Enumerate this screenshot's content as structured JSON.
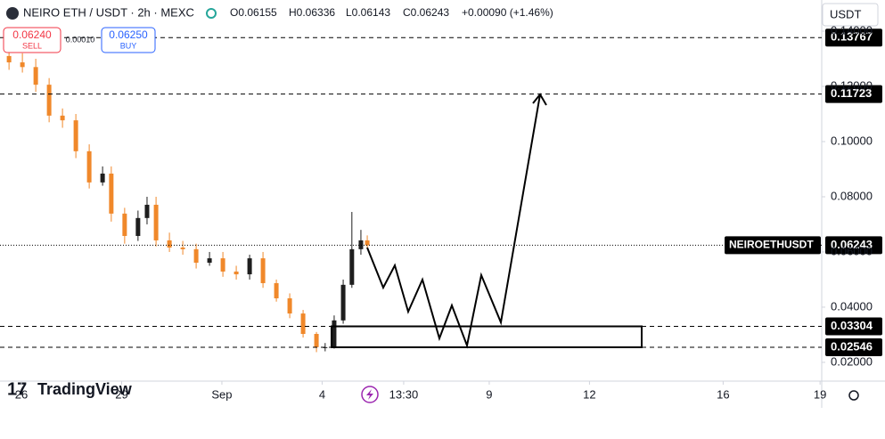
{
  "header": {
    "symbol": "NEIRO ETH / USDT · 2h · MEXC",
    "open": "O0.06155",
    "high": "H0.06336",
    "low": "L0.06143",
    "close": "C0.06243",
    "change": "+0.00090 (+1.46%)",
    "sell_price": "0.06240",
    "sell": "SELL",
    "spread": "0.00010",
    "buy_price": "0.06250",
    "buy": "BUY",
    "currency": "USDT",
    "brand": "TradingView"
  },
  "chart_data": {
    "type": "candlestick",
    "x": [
      -0.37,
      0.03,
      0.43,
      0.83,
      1.23,
      1.63,
      2.03,
      2.43,
      2.69,
      3.09,
      3.49,
      3.76,
      4.03,
      4.43,
      4.83,
      5.23,
      5.63,
      6.03,
      6.43,
      6.83,
      7.23,
      7.63,
      8.03,
      8.43,
      8.83,
      9.09,
      9.36,
      9.63,
      9.89,
      10.16,
      10.35
    ],
    "open": [
      0.131,
      0.1287,
      0.127,
      0.1206,
      0.1094,
      0.1077,
      0.0965,
      0.0852,
      0.0884,
      0.0739,
      0.0658,
      0.0723,
      0.0771,
      0.0642,
      0.0616,
      0.061,
      0.0561,
      0.0577,
      0.0529,
      0.0519,
      0.0577,
      0.0487,
      0.0432,
      0.0377,
      0.0303,
      0.0255,
      0.0255,
      0.0352,
      0.0481,
      0.061,
      0.0642
    ],
    "high": [
      0.134,
      0.132,
      0.13,
      0.123,
      0.112,
      0.11,
      0.099,
      0.091,
      0.091,
      0.076,
      0.075,
      0.08,
      0.08,
      0.067,
      0.064,
      0.063,
      0.06,
      0.06,
      0.055,
      0.059,
      0.06,
      0.05,
      0.045,
      0.039,
      0.031,
      0.027,
      0.037,
      0.05,
      0.0745,
      0.068,
      0.066
    ],
    "low": [
      0.126,
      0.125,
      0.118,
      0.107,
      0.105,
      0.094,
      0.083,
      0.084,
      0.071,
      0.063,
      0.064,
      0.07,
      0.062,
      0.06,
      0.059,
      0.054,
      0.055,
      0.051,
      0.05,
      0.05,
      0.047,
      0.042,
      0.036,
      0.029,
      0.0237,
      0.024,
      0.025,
      0.034,
      0.047,
      0.059,
      0.061
    ],
    "close": [
      0.1287,
      0.127,
      0.1206,
      0.1094,
      0.1077,
      0.0965,
      0.0852,
      0.0884,
      0.0739,
      0.0658,
      0.0723,
      0.0771,
      0.0642,
      0.0616,
      0.061,
      0.0561,
      0.0577,
      0.0529,
      0.0519,
      0.0577,
      0.0487,
      0.0432,
      0.0377,
      0.0303,
      0.0255,
      0.0255,
      0.0352,
      0.0481,
      0.061,
      0.0642,
      0.0624
    ],
    "up_color": "#1e1e1e",
    "down_color": "#f0882a",
    "xlim": [
      -0.64,
      23.95
    ],
    "ylim": [
      0.0132,
      0.1513
    ],
    "xticks": [
      {
        "value": 0,
        "label": "26"
      },
      {
        "value": 3,
        "label": "29"
      },
      {
        "value": 6,
        "label": "Sep"
      },
      {
        "value": 9,
        "label": "4"
      },
      {
        "value": 11.44,
        "label": "13:30"
      },
      {
        "value": 14,
        "label": "9"
      },
      {
        "value": 17,
        "label": "12"
      },
      {
        "value": 21,
        "label": "16"
      },
      {
        "value": 23.9,
        "label": "19"
      }
    ],
    "yticks": [
      {
        "value": 0.14,
        "label": "0.14000"
      },
      {
        "value": 0.12,
        "label": "0.12000"
      },
      {
        "value": 0.1,
        "label": "0.10000"
      },
      {
        "value": 0.08,
        "label": "0.08000"
      },
      {
        "value": 0.06,
        "label": "0.06000"
      },
      {
        "value": 0.04,
        "label": "0.04000"
      },
      {
        "value": 0.02,
        "label": "0.02000"
      }
    ],
    "levels": [
      0.13767,
      0.11723,
      0.03304,
      0.02546
    ],
    "symbol_label": "NEIROETHUSDT",
    "last_price": 0.06243,
    "grid": false
  }
}
